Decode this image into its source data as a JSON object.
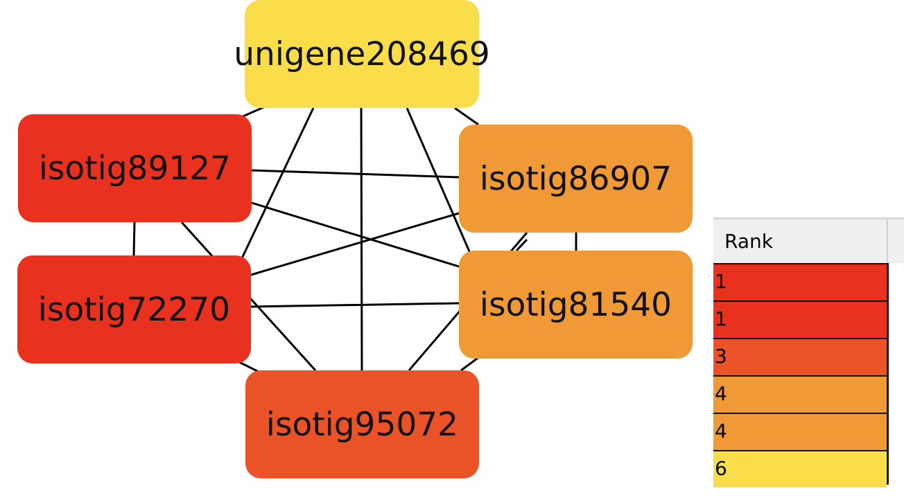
{
  "colors": {
    "rank1": "#e8321f",
    "rank3": "#ea5228",
    "rank4": "#f09a37",
    "rank6": "#f9dd4b"
  },
  "nodes": [
    {
      "id": "unigene",
      "label": "unigene208469",
      "rank": 6
    },
    {
      "id": "89127",
      "label": "isotig89127",
      "rank": 1
    },
    {
      "id": "86907",
      "label": "isotig86907",
      "rank": 4
    },
    {
      "id": "72270",
      "label": "isotig72270",
      "rank": 1
    },
    {
      "id": "81540",
      "label": "isotig81540",
      "rank": 4
    },
    {
      "id": "95072",
      "label": "isotig95072",
      "rank": 3
    }
  ],
  "edges": [
    [
      "unigene",
      "89127"
    ],
    [
      "unigene",
      "86907"
    ],
    [
      "unigene",
      "72270"
    ],
    [
      "unigene",
      "81540"
    ],
    [
      "unigene",
      "95072"
    ],
    [
      "89127",
      "86907"
    ],
    [
      "89127",
      "72270"
    ],
    [
      "89127",
      "81540"
    ],
    [
      "89127",
      "95072"
    ],
    [
      "86907",
      "72270"
    ],
    [
      "86907",
      "81540"
    ],
    [
      "86907",
      "95072"
    ],
    [
      "72270",
      "81540"
    ],
    [
      "72270",
      "95072"
    ],
    [
      "81540",
      "95072"
    ]
  ],
  "rank_table": {
    "header": "Rank",
    "rows": [
      "1",
      "1",
      "3",
      "4",
      "4",
      "6"
    ],
    "row_colors": [
      "#e8321f",
      "#e8321f",
      "#ea5228",
      "#f09a37",
      "#f09a37",
      "#f9dd4b"
    ]
  }
}
